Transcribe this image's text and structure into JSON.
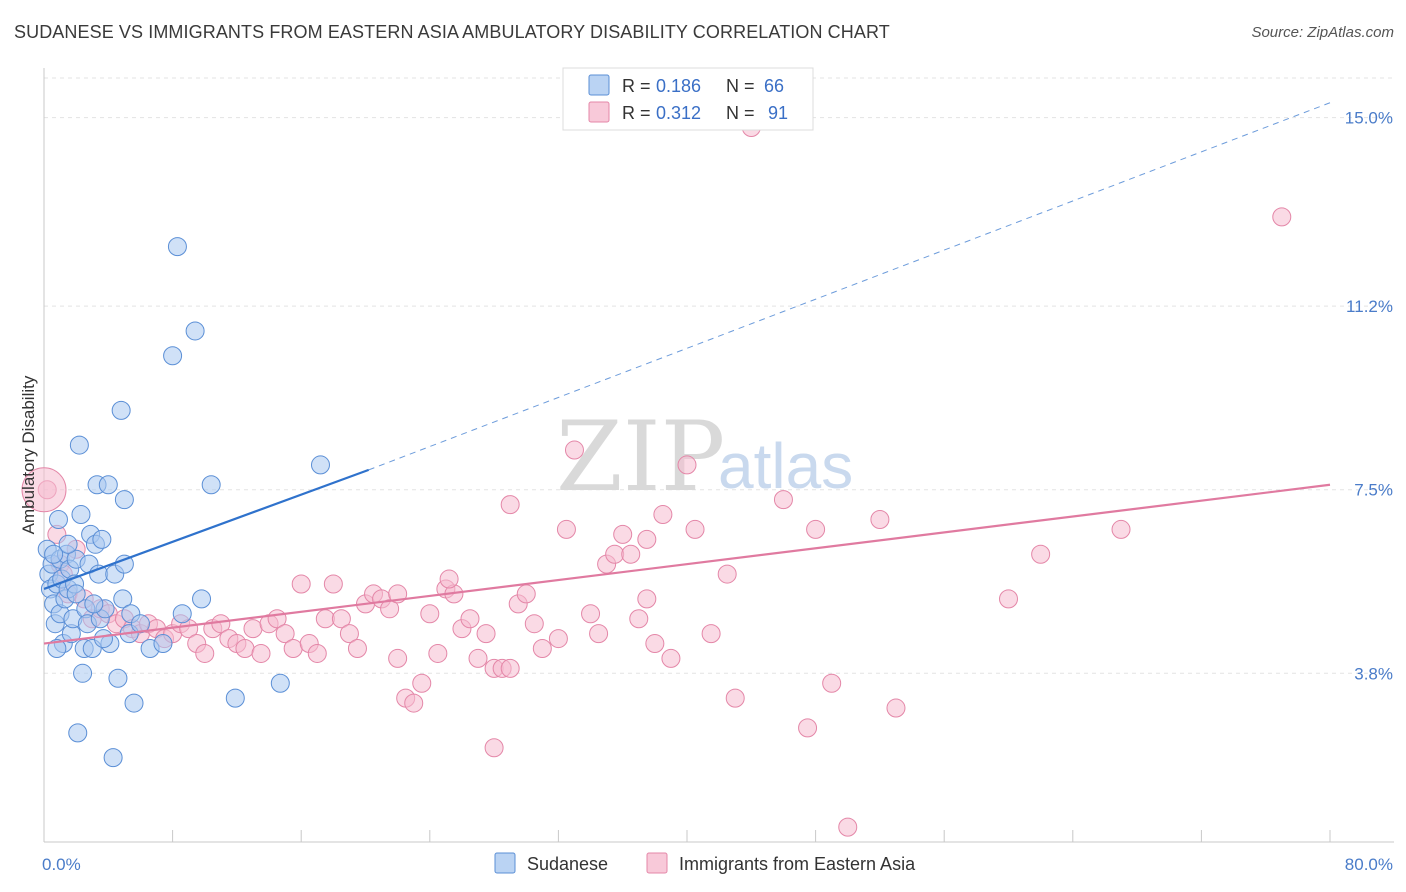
{
  "header": {
    "title": "SUDANESE VS IMMIGRANTS FROM EASTERN ASIA AMBULATORY DISABILITY CORRELATION CHART",
    "source": "Source: ZipAtlas.com"
  },
  "watermark": {
    "zip": "ZIP",
    "atlas": "atlas"
  },
  "legend": {
    "r_label": "R =",
    "n_label": "N =",
    "entries": [
      {
        "r": "0.186",
        "n": "66"
      },
      {
        "r": "0.312",
        "n": "91"
      }
    ]
  },
  "colors": {
    "blue_fill": "#a9c8f0",
    "blue_stroke": "#5b8fd6",
    "blue_line": "#2f72cc",
    "pink_fill": "#f6bcd0",
    "pink_stroke": "#e487a8",
    "pink_line": "#e07aa0",
    "grid": "#e3e3e3"
  },
  "chart_data": {
    "type": "scatter",
    "title": "SUDANESE VS IMMIGRANTS FROM EASTERN ASIA AMBULATORY DISABILITY CORRELATION CHART",
    "xlabel": "",
    "ylabel": "Ambulatory Disability",
    "xlim": [
      0,
      80
    ],
    "ylim": [
      0.4,
      16.0
    ],
    "x_tick_labels": [
      "0.0%",
      "80.0%"
    ],
    "y_ticks": [
      3.8,
      7.5,
      11.2,
      15.0
    ],
    "y_tick_labels": [
      "3.8%",
      "7.5%",
      "11.2%",
      "15.0%"
    ],
    "grid": true,
    "legend_position": "top-center",
    "series": [
      {
        "name": "Sudanese",
        "r": 0.186,
        "n": 66,
        "trend": {
          "x": [
            0,
            20.2
          ],
          "y": [
            5.5,
            7.9
          ],
          "extrapolated_to": [
            80,
            15.3
          ]
        },
        "points": [
          [
            0.2,
            6.3
          ],
          [
            0.3,
            5.8
          ],
          [
            0.4,
            5.5
          ],
          [
            0.5,
            6.0
          ],
          [
            0.6,
            5.2
          ],
          [
            0.7,
            4.8
          ],
          [
            0.8,
            5.6
          ],
          [
            0.9,
            6.9
          ],
          [
            1.0,
            5.0
          ],
          [
            1.0,
            6.1
          ],
          [
            1.1,
            5.7
          ],
          [
            1.2,
            4.4
          ],
          [
            1.3,
            5.3
          ],
          [
            1.4,
            6.2
          ],
          [
            1.5,
            5.5
          ],
          [
            1.6,
            5.9
          ],
          [
            1.7,
            4.6
          ],
          [
            1.8,
            4.9
          ],
          [
            1.9,
            5.6
          ],
          [
            2.0,
            6.1
          ],
          [
            2.1,
            2.6
          ],
          [
            2.2,
            8.4
          ],
          [
            2.3,
            7.0
          ],
          [
            2.4,
            3.8
          ],
          [
            2.5,
            4.3
          ],
          [
            2.6,
            5.1
          ],
          [
            2.7,
            4.8
          ],
          [
            2.8,
            6.0
          ],
          [
            2.9,
            6.6
          ],
          [
            3.0,
            4.3
          ],
          [
            3.2,
            6.4
          ],
          [
            3.3,
            7.6
          ],
          [
            3.4,
            5.8
          ],
          [
            3.5,
            4.9
          ],
          [
            3.6,
            6.5
          ],
          [
            3.8,
            5.1
          ],
          [
            4.0,
            7.6
          ],
          [
            4.1,
            4.4
          ],
          [
            4.3,
            2.1
          ],
          [
            4.4,
            5.8
          ],
          [
            4.6,
            3.7
          ],
          [
            4.8,
            9.1
          ],
          [
            5.0,
            7.3
          ],
          [
            5.3,
            4.6
          ],
          [
            5.6,
            3.2
          ],
          [
            5.0,
            6.0
          ],
          [
            4.9,
            5.3
          ],
          [
            5.4,
            5.0
          ],
          [
            6.0,
            4.8
          ],
          [
            6.6,
            4.3
          ],
          [
            7.4,
            4.4
          ],
          [
            8.0,
            10.2
          ],
          [
            8.3,
            12.4
          ],
          [
            8.6,
            5.0
          ],
          [
            9.4,
            10.7
          ],
          [
            9.8,
            5.3
          ],
          [
            10.4,
            7.6
          ],
          [
            11.9,
            3.3
          ],
          [
            14.7,
            3.6
          ],
          [
            17.2,
            8.0
          ],
          [
            0.8,
            4.3
          ],
          [
            1.5,
            6.4
          ],
          [
            2.0,
            5.4
          ],
          [
            3.1,
            5.2
          ],
          [
            3.7,
            4.5
          ],
          [
            0.6,
            6.2
          ]
        ]
      },
      {
        "name": "Immigrants from Eastern Asia",
        "r": 0.312,
        "n": 91,
        "trend": {
          "x": [
            0,
            80
          ],
          "y": [
            4.4,
            7.6
          ]
        },
        "points": [
          [
            0.2,
            7.5
          ],
          [
            0.8,
            6.6
          ],
          [
            1.0,
            6.0
          ],
          [
            1.2,
            5.8
          ],
          [
            1.5,
            5.4
          ],
          [
            2.0,
            6.3
          ],
          [
            2.5,
            5.3
          ],
          [
            3.0,
            4.9
          ],
          [
            3.5,
            5.1
          ],
          [
            4.0,
            5.0
          ],
          [
            4.5,
            4.8
          ],
          [
            5.0,
            4.9
          ],
          [
            5.5,
            4.7
          ],
          [
            6.0,
            4.6
          ],
          [
            6.5,
            4.8
          ],
          [
            7.0,
            4.7
          ],
          [
            7.5,
            4.5
          ],
          [
            8.0,
            4.6
          ],
          [
            8.5,
            4.8
          ],
          [
            9.0,
            4.7
          ],
          [
            9.5,
            4.4
          ],
          [
            10.0,
            4.2
          ],
          [
            10.5,
            4.7
          ],
          [
            11.0,
            4.8
          ],
          [
            11.5,
            4.5
          ],
          [
            12.0,
            4.4
          ],
          [
            12.5,
            4.3
          ],
          [
            13.0,
            4.7
          ],
          [
            13.5,
            4.2
          ],
          [
            14.0,
            4.8
          ],
          [
            14.5,
            4.9
          ],
          [
            15.0,
            4.6
          ],
          [
            15.5,
            4.3
          ],
          [
            16.0,
            5.6
          ],
          [
            16.5,
            4.4
          ],
          [
            17.0,
            4.2
          ],
          [
            17.5,
            4.9
          ],
          [
            18.0,
            5.6
          ],
          [
            18.5,
            4.9
          ],
          [
            19.0,
            4.6
          ],
          [
            19.5,
            4.3
          ],
          [
            20.0,
            5.2
          ],
          [
            20.5,
            5.4
          ],
          [
            21.0,
            5.3
          ],
          [
            21.5,
            5.1
          ],
          [
            22.0,
            4.1
          ],
          [
            22.5,
            3.3
          ],
          [
            23.0,
            3.2
          ],
          [
            23.5,
            3.6
          ],
          [
            24.0,
            5.0
          ],
          [
            24.5,
            4.2
          ],
          [
            25.0,
            5.5
          ],
          [
            25.5,
            5.4
          ],
          [
            26.0,
            4.7
          ],
          [
            26.5,
            4.9
          ],
          [
            27.0,
            4.1
          ],
          [
            27.5,
            4.6
          ],
          [
            28.0,
            3.9
          ],
          [
            28.5,
            3.9
          ],
          [
            29.0,
            3.9
          ],
          [
            29.5,
            5.2
          ],
          [
            30.0,
            5.4
          ],
          [
            30.5,
            4.8
          ],
          [
            31.0,
            4.3
          ],
          [
            32.0,
            4.5
          ],
          [
            32.5,
            6.7
          ],
          [
            33.0,
            8.3
          ],
          [
            34.0,
            5.0
          ],
          [
            34.5,
            4.6
          ],
          [
            35.0,
            6.0
          ],
          [
            35.5,
            6.2
          ],
          [
            36.0,
            6.6
          ],
          [
            36.5,
            6.2
          ],
          [
            37.0,
            4.9
          ],
          [
            37.5,
            5.3
          ],
          [
            38.0,
            4.4
          ],
          [
            38.5,
            7.0
          ],
          [
            39.0,
            4.1
          ],
          [
            40.0,
            8.0
          ],
          [
            40.5,
            6.7
          ],
          [
            41.5,
            4.6
          ],
          [
            43.0,
            3.3
          ],
          [
            44.0,
            14.8
          ],
          [
            46.0,
            7.3
          ],
          [
            47.5,
            2.7
          ],
          [
            48.0,
            6.7
          ],
          [
            49.0,
            3.6
          ],
          [
            50.0,
            0.7
          ],
          [
            53.0,
            3.1
          ],
          [
            60.0,
            5.3
          ],
          [
            62.0,
            6.2
          ]
        ],
        "outlier_points": [
          [
            22.0,
            5.4
          ],
          [
            25.2,
            5.7
          ],
          [
            29.0,
            7.2
          ],
          [
            28.0,
            2.3
          ],
          [
            37.5,
            6.5
          ],
          [
            42.5,
            5.8
          ],
          [
            52.0,
            6.9
          ],
          [
            67.0,
            6.7
          ],
          [
            77.0,
            13.0
          ]
        ]
      }
    ]
  },
  "bottom_legend": {
    "items": [
      {
        "label": "Sudanese"
      },
      {
        "label": "Immigrants from Eastern Asia"
      }
    ]
  }
}
